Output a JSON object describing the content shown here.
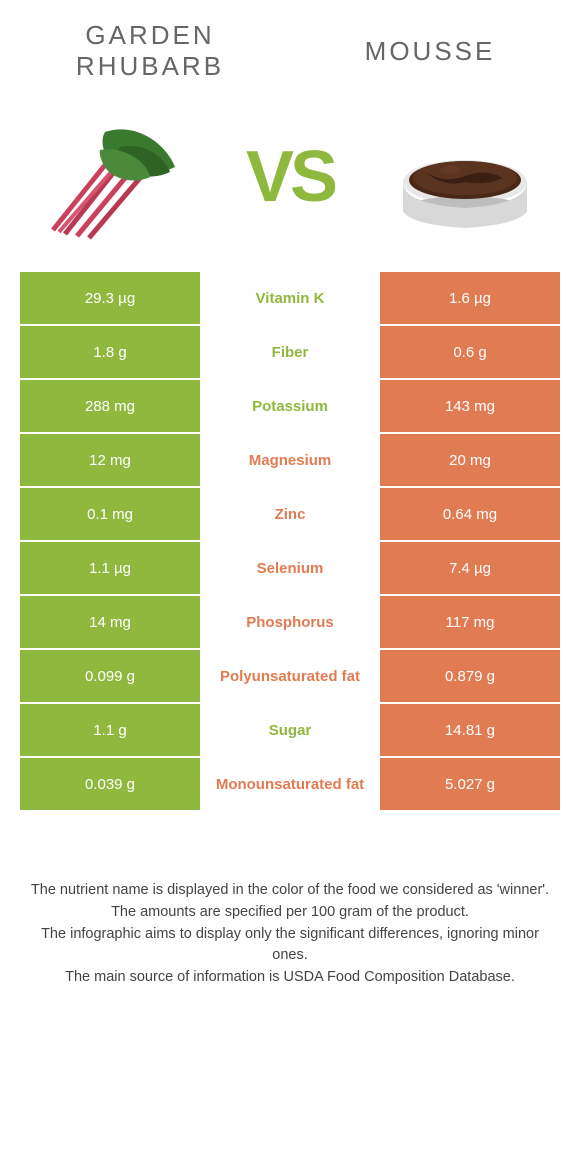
{
  "colors": {
    "green": "#8fb93e",
    "orange": "#e07b52",
    "green_text": "#8fb93e",
    "orange_text": "#e07b52",
    "header_text": "#666666",
    "footer_text": "#444444",
    "background": "#ffffff"
  },
  "food_left": {
    "title": "GARDEN\nRHUBARB"
  },
  "food_right": {
    "title": "MOUSSE"
  },
  "vs_label": "VS",
  "rows": [
    {
      "nutrient": "Vitamin K",
      "winner": "left",
      "left": "29.3 µg",
      "right": "1.6 µg"
    },
    {
      "nutrient": "Fiber",
      "winner": "left",
      "left": "1.8 g",
      "right": "0.6 g"
    },
    {
      "nutrient": "Potassium",
      "winner": "left",
      "left": "288 mg",
      "right": "143 mg"
    },
    {
      "nutrient": "Magnesium",
      "winner": "right",
      "left": "12 mg",
      "right": "20 mg"
    },
    {
      "nutrient": "Zinc",
      "winner": "right",
      "left": "0.1 mg",
      "right": "0.64 mg"
    },
    {
      "nutrient": "Selenium",
      "winner": "right",
      "left": "1.1 µg",
      "right": "7.4 µg"
    },
    {
      "nutrient": "Phosphorus",
      "winner": "right",
      "left": "14 mg",
      "right": "117 mg"
    },
    {
      "nutrient": "Polyunsaturated fat",
      "winner": "right",
      "left": "0.099 g",
      "right": "0.879 g"
    },
    {
      "nutrient": "Sugar",
      "winner": "left",
      "left": "1.1 g",
      "right": "14.81 g"
    },
    {
      "nutrient": "Monounsaturated fat",
      "winner": "right",
      "left": "0.039 g",
      "right": "5.027 g"
    }
  ],
  "footer_lines": [
    "The nutrient name is displayed in the color of the food we considered as 'winner'.",
    "The amounts are specified per 100 gram of the product.",
    "The infographic aims to display only the significant differences, ignoring minor ones.",
    "The main source of information is USDA Food Composition Database."
  ]
}
